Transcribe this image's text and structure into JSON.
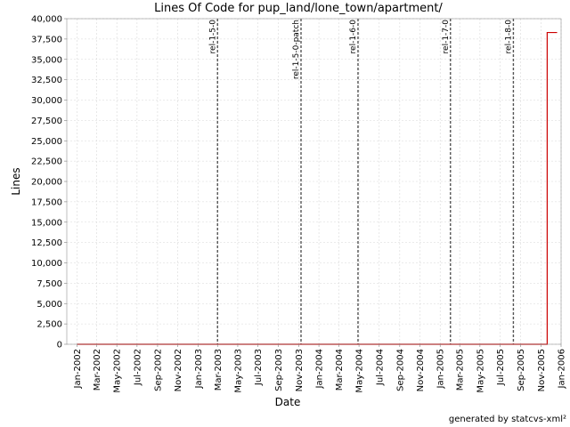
{
  "chart_data": {
    "type": "line",
    "title": "Lines Of Code for pup_land/lone_town/apartment/",
    "xlabel": "Date",
    "ylabel": "Lines",
    "xlim": [
      "2001-12-01",
      "2006-01-01"
    ],
    "ylim": [
      0,
      40000
    ],
    "x_ticks": [
      {
        "date": "2002-01-01",
        "label": "Jan-2002"
      },
      {
        "date": "2002-03-01",
        "label": "Mar-2002"
      },
      {
        "date": "2002-05-01",
        "label": "May-2002"
      },
      {
        "date": "2002-07-01",
        "label": "Jul-2002"
      },
      {
        "date": "2002-09-01",
        "label": "Sep-2002"
      },
      {
        "date": "2002-11-01",
        "label": "Nov-2002"
      },
      {
        "date": "2003-01-01",
        "label": "Jan-2003"
      },
      {
        "date": "2003-03-01",
        "label": "Mar-2003"
      },
      {
        "date": "2003-05-01",
        "label": "May-2003"
      },
      {
        "date": "2003-07-01",
        "label": "Jul-2003"
      },
      {
        "date": "2003-09-01",
        "label": "Sep-2003"
      },
      {
        "date": "2003-11-01",
        "label": "Nov-2003"
      },
      {
        "date": "2004-01-01",
        "label": "Jan-2004"
      },
      {
        "date": "2004-03-01",
        "label": "Mar-2004"
      },
      {
        "date": "2004-05-01",
        "label": "May-2004"
      },
      {
        "date": "2004-07-01",
        "label": "Jul-2004"
      },
      {
        "date": "2004-09-01",
        "label": "Sep-2004"
      },
      {
        "date": "2004-11-01",
        "label": "Nov-2004"
      },
      {
        "date": "2005-01-01",
        "label": "Jan-2005"
      },
      {
        "date": "2005-03-01",
        "label": "Mar-2005"
      },
      {
        "date": "2005-05-01",
        "label": "May-2005"
      },
      {
        "date": "2005-07-01",
        "label": "Jul-2005"
      },
      {
        "date": "2005-09-01",
        "label": "Sep-2005"
      },
      {
        "date": "2005-11-01",
        "label": "Nov-2005"
      },
      {
        "date": "2006-01-01",
        "label": "Jan-2006"
      }
    ],
    "y_ticks": [
      {
        "value": 0,
        "label": "0"
      },
      {
        "value": 2500,
        "label": "2,500"
      },
      {
        "value": 5000,
        "label": "5,000"
      },
      {
        "value": 7500,
        "label": "7,500"
      },
      {
        "value": 10000,
        "label": "10,000"
      },
      {
        "value": 12500,
        "label": "12,500"
      },
      {
        "value": 15000,
        "label": "15,000"
      },
      {
        "value": 17500,
        "label": "17,500"
      },
      {
        "value": 20000,
        "label": "20,000"
      },
      {
        "value": 22500,
        "label": "22,500"
      },
      {
        "value": 25000,
        "label": "25,000"
      },
      {
        "value": 27500,
        "label": "27,500"
      },
      {
        "value": 30000,
        "label": "30,000"
      },
      {
        "value": 32500,
        "label": "32,500"
      },
      {
        "value": 35000,
        "label": "35,000"
      },
      {
        "value": 37500,
        "label": "37,500"
      },
      {
        "value": 40000,
        "label": "40,000"
      }
    ],
    "grid": true,
    "legend": false,
    "series": [
      {
        "color": "#cc0000",
        "step": true,
        "points": [
          {
            "x": "2002-01-01",
            "y": 0
          },
          {
            "x": "2005-11-20",
            "y": 0
          },
          {
            "x": "2005-11-20",
            "y": 38300
          },
          {
            "x": "2005-12-20",
            "y": 38300
          }
        ]
      }
    ],
    "markers": [
      {
        "date": "2003-03-01",
        "label": "rel-1-5-0"
      },
      {
        "date": "2003-11-08",
        "label": "rel-1-5-0-patch"
      },
      {
        "date": "2004-04-28",
        "label": "rel-1-6-0"
      },
      {
        "date": "2005-02-01",
        "label": "rel-1-7-0"
      },
      {
        "date": "2005-08-10",
        "label": "rel-1-8-0"
      }
    ],
    "colors": {
      "grid": "#d8d8d8",
      "marker": "#555555",
      "axis": "#808080"
    }
  },
  "footer": {
    "credit": "generated by statcvs-xml²"
  }
}
